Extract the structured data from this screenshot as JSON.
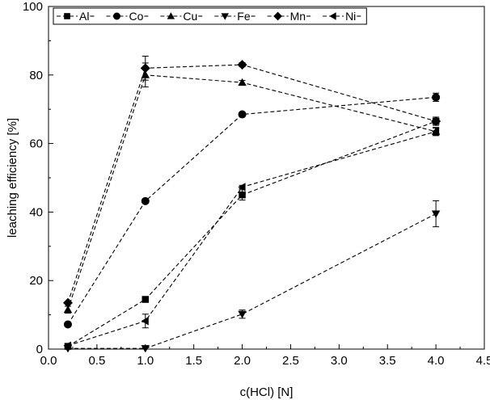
{
  "chart_data": {
    "type": "line",
    "xlabel": "c(HCl) [N]",
    "ylabel": "leaching efficiency [%]",
    "xlim": [
      0.0,
      4.5
    ],
    "ylim": [
      0,
      100
    ],
    "x_ticks": [
      "0.0",
      "0.5",
      "1.0",
      "1.5",
      "2.0",
      "2.5",
      "3.0",
      "3.5",
      "4.0",
      "4.5"
    ],
    "y_ticks": [
      "0",
      "20",
      "40",
      "60",
      "80",
      "100"
    ],
    "grid": false,
    "legend_position": "top",
    "line_style": "dashed",
    "color": "#000000",
    "series": [
      {
        "name": "Al",
        "marker": "square",
        "x": [
          0.2,
          1.0,
          2.0,
          4.0
        ],
        "y": [
          0.8,
          14.5,
          45,
          66.5
        ],
        "err": [
          0.3,
          0.8,
          1.5,
          1.2
        ]
      },
      {
        "name": "Co",
        "marker": "circle",
        "x": [
          0.2,
          1.0,
          2.0,
          4.0
        ],
        "y": [
          7.2,
          43.2,
          68.5,
          73.5
        ],
        "err": [
          0.3,
          0.4,
          0.6,
          1.2
        ]
      },
      {
        "name": "Cu",
        "marker": "triangle-up",
        "x": [
          0.2,
          1.0,
          2.0,
          4.0
        ],
        "y": [
          11.5,
          80,
          77.8,
          63.5
        ],
        "err": [
          1.0,
          3.5,
          0.6,
          1.0
        ]
      },
      {
        "name": "Fe",
        "marker": "triangle-down",
        "x": [
          0.2,
          1.0,
          2.0,
          4.0
        ],
        "y": [
          0.2,
          0.2,
          10.2,
          39.5
        ],
        "err": [
          0.2,
          0.2,
          1.2,
          3.8
        ]
      },
      {
        "name": "Mn",
        "marker": "diamond",
        "x": [
          0.2,
          1.0,
          2.0,
          4.0
        ],
        "y": [
          13.5,
          82,
          83,
          66.5
        ],
        "err": [
          0.3,
          3.5,
          0.6,
          0.6
        ]
      },
      {
        "name": "Ni",
        "marker": "triangle-left",
        "x": [
          0.2,
          1.0,
          2.0,
          4.0
        ],
        "y": [
          1.0,
          8.2,
          47.3,
          63.5
        ],
        "err": [
          0.3,
          2.0,
          0.5,
          1.2
        ]
      }
    ]
  }
}
